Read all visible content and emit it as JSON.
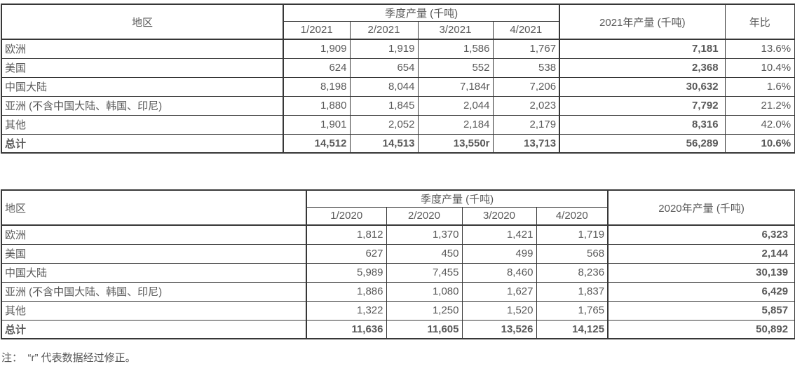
{
  "page": {
    "background": "#ffffff",
    "text_color": "#595959",
    "border_color": "#373737"
  },
  "tables": [
    {
      "id": "t2021",
      "region_header": "地区",
      "group_header": "季度产量 (千吨)",
      "quarters": [
        "1/2021",
        "2/2021",
        "3/2021",
        "4/2021"
      ],
      "annual_header": "2021年产量 (千吨)",
      "yoy_header": "年比",
      "rows": [
        {
          "region": "欧洲",
          "values": [
            "1,909",
            "1,919",
            "1,586",
            "1,767"
          ],
          "annual": "7,181",
          "yoy": "13.6%",
          "is_total": false
        },
        {
          "region": "美国",
          "values": [
            "624",
            "654",
            "552",
            "538"
          ],
          "annual": "2,368",
          "yoy": "10.4%",
          "is_total": false
        },
        {
          "region": "中国大陆",
          "values": [
            "8,198",
            "8,044",
            "7,184r",
            "7,206"
          ],
          "annual": "30,632",
          "yoy": "1.6%",
          "is_total": false
        },
        {
          "region": "亚洲 (不含中国大陆、韩国、印尼)",
          "values": [
            "1,880",
            "1,845",
            "2,044",
            "2,023"
          ],
          "annual": "7,792",
          "yoy": "21.2%",
          "is_total": false
        },
        {
          "region": "其他",
          "values": [
            "1,901",
            "2,052",
            "2,184",
            "2,179"
          ],
          "annual": "8,316",
          "yoy": "42.0%",
          "is_total": false
        },
        {
          "region": "总计",
          "values": [
            "14,512",
            "14,513",
            "13,550r",
            "13,713"
          ],
          "annual": "56,289",
          "yoy": "10.6%",
          "is_total": true
        }
      ]
    },
    {
      "id": "t2020",
      "region_header": "地区",
      "group_header": "季度产量 (千吨)",
      "quarters": [
        "1/2020",
        "2/2020",
        "3/2020",
        "4/2020"
      ],
      "annual_header": "2020年产量 (千吨)",
      "rows": [
        {
          "region": "欧洲",
          "values": [
            "1,812",
            "1,370",
            "1,421",
            "1,719"
          ],
          "annual": "6,323",
          "is_total": false
        },
        {
          "region": "美国",
          "values": [
            "627",
            "450",
            "499",
            "568"
          ],
          "annual": "2,144",
          "is_total": false
        },
        {
          "region": "中国大陆",
          "values": [
            "5,989",
            "7,455",
            "8,460",
            "8,236"
          ],
          "annual": "30,139",
          "is_total": false
        },
        {
          "region": "亚洲 (不含中国大陆、韩国、印尼)",
          "values": [
            "1,886",
            "1,080",
            "1,627",
            "1,837"
          ],
          "annual": "6,429",
          "is_total": false
        },
        {
          "region": "其他",
          "values": [
            "1,322",
            "1,250",
            "1,520",
            "1,765"
          ],
          "annual": "5,857",
          "is_total": false
        },
        {
          "region": "总计",
          "values": [
            "11,636",
            "11,605",
            "13,526",
            "14,125"
          ],
          "annual": "50,892",
          "is_total": true
        }
      ]
    }
  ],
  "note": "注：　“r” 代表数据经过修正。"
}
